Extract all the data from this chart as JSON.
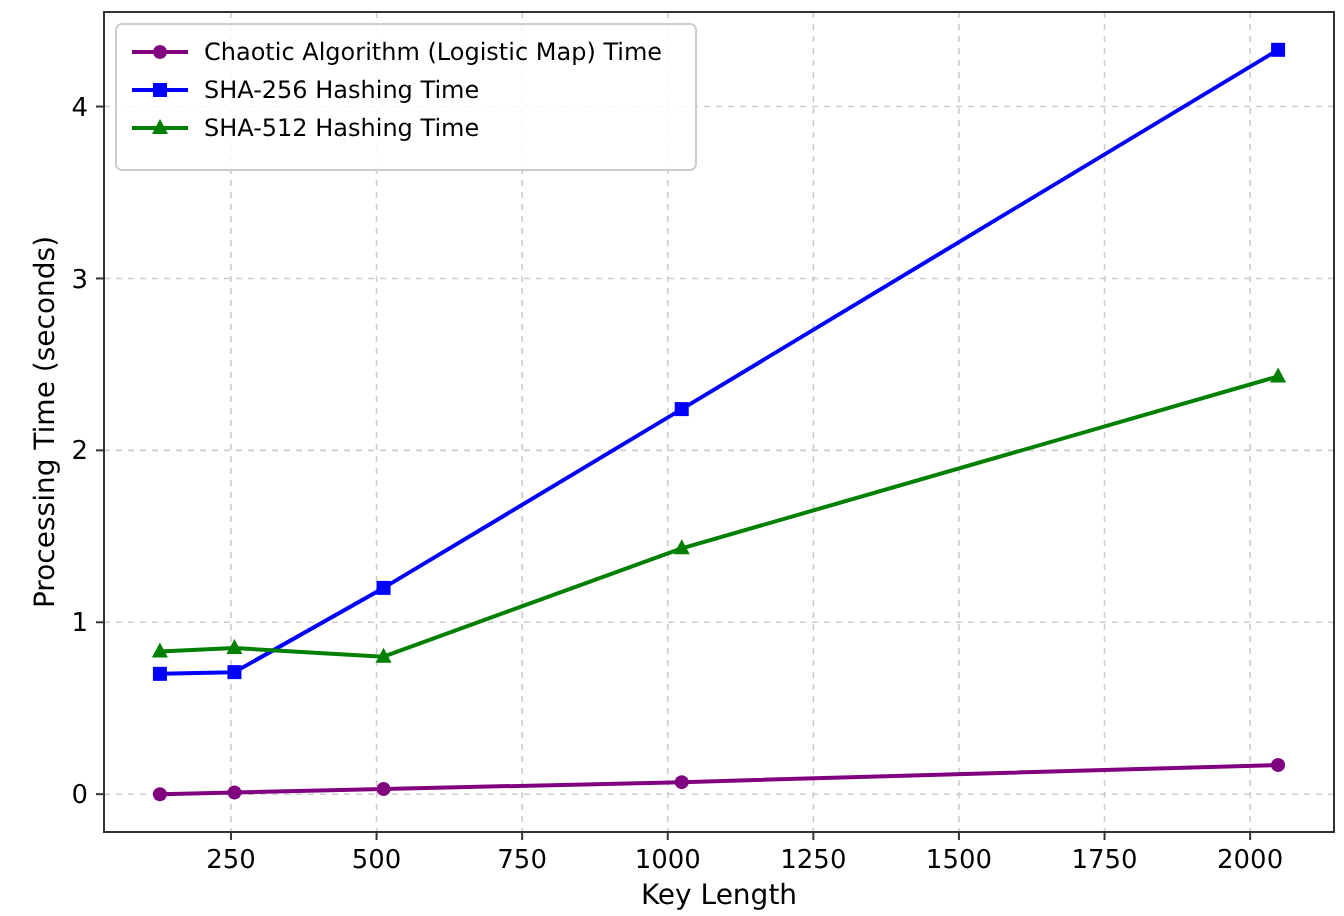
{
  "chart_data": {
    "type": "line",
    "xlabel": "Key Length",
    "ylabel": "Processing Time (seconds)",
    "x": [
      128,
      256,
      512,
      1024,
      2048
    ],
    "series": [
      {
        "name": "Chaotic Algorithm (Logistic Map) Time",
        "color": "#800080",
        "marker": "circle",
        "values": [
          0,
          0.01,
          0.03,
          0.07,
          0.17
        ]
      },
      {
        "name": "SHA-256 Hashing Time",
        "color": "#0000ff",
        "marker": "square",
        "values": [
          0.7,
          0.71,
          1.2,
          2.24,
          4.33
        ]
      },
      {
        "name": "SHA-512 Hashing Time",
        "color": "#008000",
        "marker": "triangle",
        "values": [
          0.83,
          0.85,
          0.8,
          1.43,
          2.43
        ]
      }
    ],
    "xlim": [
      32,
      2144
    ],
    "xticks": [
      250,
      500,
      750,
      1000,
      1250,
      1500,
      1750,
      2000
    ],
    "ylim": [
      -0.22,
      4.55
    ],
    "yticks": [
      0,
      1,
      2,
      3,
      4
    ],
    "grid": true,
    "legend": "top left",
    "line_style": "solid"
  }
}
